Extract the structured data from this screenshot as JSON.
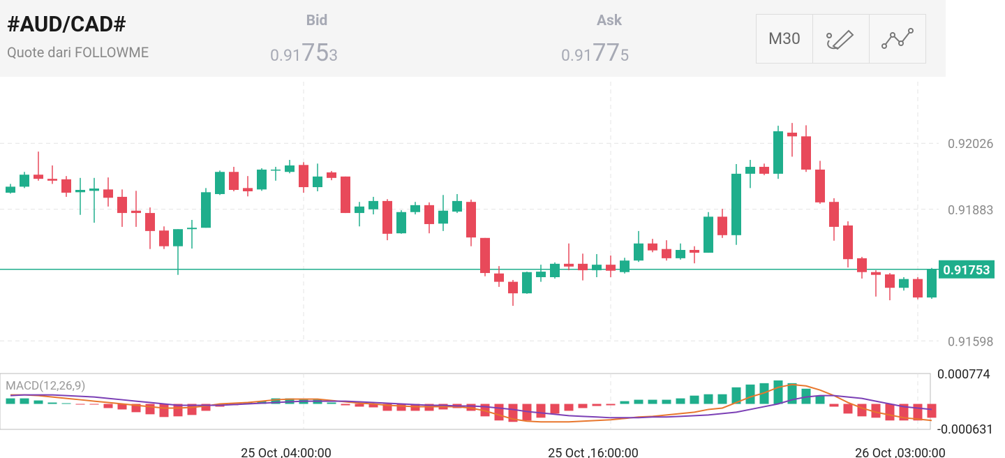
{
  "header": {
    "symbol": "#AUD/CAD#",
    "source": "Quote dari FOLLOWME",
    "bid": {
      "label": "Bid",
      "price": [
        "0.91",
        "75",
        "3"
      ]
    },
    "ask": {
      "label": "Ask",
      "price": [
        "0.91",
        "77",
        "5"
      ]
    },
    "timeframe": "M30"
  },
  "chart_data": [
    {
      "type": "candlestick",
      "up_color": "#1fae8c",
      "down_color": "#e8495a",
      "grid": true,
      "x": [
        null,
        null,
        null,
        null,
        null,
        null,
        null,
        null,
        null,
        null,
        null,
        null,
        null,
        null,
        null,
        null,
        null,
        null,
        null,
        null,
        null,
        "25 Oct ,04:00:00",
        null,
        null,
        null,
        null,
        null,
        null,
        null,
        null,
        null,
        null,
        null,
        null,
        null,
        null,
        null,
        null,
        null,
        null,
        null,
        null,
        null,
        "25 Oct ,16:00:00",
        null,
        null,
        null,
        null,
        null,
        null,
        null,
        null,
        null,
        null,
        null,
        null,
        null,
        null,
        null,
        null,
        null,
        null,
        null,
        null,
        null,
        "26 Oct ,03:00:00",
        null
      ],
      "open": [
        0.91919,
        0.91932,
        0.91958,
        0.91949,
        0.91948,
        0.9192,
        0.91923,
        0.91926,
        0.9191,
        0.9188,
        0.91875,
        0.91837,
        0.91803,
        0.9184,
        0.91843,
        0.91916,
        0.91964,
        0.91929,
        0.91926,
        0.91967,
        0.91964,
        0.91979,
        0.91931,
        0.91963,
        0.91954,
        0.91875,
        0.91883,
        0.91901,
        0.91831,
        0.91877,
        0.91892,
        0.91852,
        0.91878,
        0.91899,
        0.91821,
        0.91744,
        0.91726,
        0.91701,
        0.91736,
        0.91736,
        0.91765,
        0.91765,
        0.91751,
        0.91763,
        0.91747,
        0.91772,
        0.91809,
        0.91797,
        0.91777,
        0.91795,
        0.91789,
        0.91867,
        0.91827,
        0.9196,
        0.91975,
        0.9196,
        0.92049,
        0.92041,
        0.91969,
        0.91899,
        0.91848,
        0.91777,
        0.91747,
        0.91742,
        0.91713,
        0.91732,
        0.91692
      ],
      "high": [
        0.91938,
        0.91964,
        0.92008,
        0.91978,
        0.91955,
        0.91951,
        0.91951,
        0.91952,
        0.91926,
        0.91923,
        0.91887,
        0.91846,
        0.9184,
        0.9186,
        0.91929,
        0.91967,
        0.91975,
        0.91955,
        0.91972,
        0.91975,
        0.9199,
        0.91985,
        0.91982,
        0.91966,
        0.91954,
        0.91899,
        0.9191,
        0.91905,
        0.91881,
        0.91899,
        0.91898,
        0.91914,
        0.91916,
        0.91904,
        0.91821,
        0.9176,
        0.9173,
        0.91748,
        0.91763,
        0.91768,
        0.91809,
        0.91787,
        0.91786,
        0.91783,
        0.91778,
        0.91836,
        0.91819,
        0.91816,
        0.91809,
        0.91803,
        0.91877,
        0.91884,
        0.91981,
        0.9199,
        0.91982,
        0.92064,
        0.9207,
        0.92065,
        0.91988,
        0.91907,
        0.91857,
        0.9178,
        0.91751,
        0.91745,
        0.91736,
        0.91736,
        0.91756
      ],
      "low": [
        0.91917,
        0.91929,
        0.91945,
        0.91938,
        0.9191,
        0.91871,
        0.91854,
        0.91889,
        0.91845,
        0.91845,
        0.91797,
        0.91797,
        0.91741,
        0.91798,
        0.91843,
        0.91914,
        0.91922,
        0.91911,
        0.91923,
        0.91945,
        0.91961,
        0.91919,
        0.91922,
        0.91946,
        0.91875,
        0.91846,
        0.91872,
        0.91816,
        0.9183,
        0.91872,
        0.91831,
        0.91836,
        0.91875,
        0.91803,
        0.91738,
        0.91715,
        0.91674,
        0.917,
        0.91726,
        0.91733,
        0.91751,
        0.91729,
        0.91736,
        0.91736,
        0.91744,
        0.91769,
        0.9179,
        0.91772,
        0.91774,
        0.91766,
        0.91789,
        0.91821,
        0.91806,
        0.91929,
        0.91957,
        0.91949,
        0.91997,
        0.91964,
        0.91895,
        0.91815,
        0.91757,
        0.91733,
        0.91694,
        0.91686,
        0.91707,
        0.91688,
        0.91689
      ],
      "close": [
        0.91932,
        0.91958,
        0.91949,
        0.91945,
        0.91919,
        0.91925,
        0.91928,
        0.91908,
        0.91875,
        0.91875,
        0.91836,
        0.91803,
        0.9184,
        0.91843,
        0.9192,
        0.91964,
        0.91925,
        0.91922,
        0.91969,
        0.91969,
        0.91978,
        0.91931,
        0.91954,
        0.91951,
        0.91875,
        0.91889,
        0.91901,
        0.9183,
        0.91877,
        0.91892,
        0.91851,
        0.9188,
        0.91901,
        0.91822,
        0.91745,
        0.91726,
        0.91701,
        0.91747,
        0.91748,
        0.91765,
        0.91759,
        0.91751,
        0.91763,
        0.9175,
        0.91772,
        0.91809,
        0.91794,
        0.91777,
        0.91795,
        0.91789,
        0.91867,
        0.91827,
        0.9196,
        0.91975,
        0.9196,
        0.92052,
        0.92041,
        0.91969,
        0.91898,
        0.91845,
        0.91775,
        0.91747,
        0.91741,
        0.91713,
        0.91732,
        0.91692,
        0.91753
      ],
      "last_price": 0.91753,
      "ylim": [
        0.9155,
        0.9217
      ],
      "yticks": [
        0.92026,
        0.91883,
        0.91598
      ]
    },
    {
      "type": "macd",
      "title": "MACD(12,26,9)",
      "up_color": "#1fae8c",
      "down_color": "#e8495a",
      "grid": true,
      "ylim": [
        -0.000631,
        0.000774
      ],
      "yticks": [
        0.000774,
        -0.000631
      ],
      "histogram": [
        0.000141,
        0.000141,
        8.8e-05,
        3.5e-05,
        1.8e-05,
        -1.8e-05,
        -1.8e-05,
        -0.000106,
        -0.000141,
        -0.000211,
        -0.000264,
        -0.000334,
        -0.000317,
        -0.000282,
        -0.000176,
        -7e-05,
        -3.5e-05,
        3.5e-05,
        7e-05,
        0.000141,
        0.000141,
        0.000106,
        0.000106,
        3.5e-05,
        -3.5e-05,
        -7e-05,
        -8.8e-05,
        -0.000176,
        -0.000176,
        -0.000176,
        -0.000176,
        -0.000141,
        -0.000106,
        -0.000176,
        -0.000317,
        -0.000422,
        -0.000458,
        -0.000422,
        -0.000352,
        -0.000246,
        -0.000176,
        -0.000106,
        -5.3e-05,
        -3.5e-05,
        7e-05,
        0.000106,
        0.000106,
        0.000106,
        0.000141,
        0.000211,
        0.000246,
        0.000246,
        0.000422,
        0.000493,
        0.000528,
        0.000598,
        0.000528,
        0.000387,
        0.000211,
        -7e-05,
        -0.000246,
        -0.000317,
        -0.000352,
        -0.000422,
        -0.000422,
        -0.000422,
        -0.000352
      ],
      "lines": [
        {
          "color": "#e8772e",
          "values": [
            0.000229,
            0.000229,
            0.000211,
            0.000176,
            0.000141,
            0.000106,
            7e-05,
            3.5e-05,
            0,
            -3.5e-05,
            -7e-05,
            -0.000106,
            -0.000106,
            -8.8e-05,
            -5.3e-05,
            0,
            1.8e-05,
            3.5e-05,
            7e-05,
            0.000106,
            0.000123,
            0.000123,
            0.000123,
            8.8e-05,
            5.3e-05,
            1.8e-05,
            0,
            -3.5e-05,
            -5.3e-05,
            -7e-05,
            -7e-05,
            -7e-05,
            -7e-05,
            -0.000106,
            -0.000176,
            -0.000282,
            -0.000387,
            -0.00044,
            -0.000458,
            -0.000458,
            -0.000458,
            -0.00044,
            -0.000422,
            -0.000405,
            -0.00037,
            -0.000334,
            -0.000317,
            -0.000282,
            -0.000246,
            -0.000211,
            -0.000141,
            -0.000106,
            3.5e-05,
            0.000176,
            0.000282,
            0.000422,
            0.000493,
            0.000458,
            0.000352,
            0.000211,
            3.5e-05,
            -0.000106,
            -0.000211,
            -0.000282,
            -0.000352,
            -0.000387,
            -0.000422
          ]
        },
        {
          "color": "#7b3fb5",
          "values": [
            0.000211,
            0.000229,
            0.000229,
            0.000229,
            0.000211,
            0.000194,
            0.000176,
            0.000141,
            0.000106,
            7e-05,
            3.5e-05,
            0,
            -3.5e-05,
            -3.5e-05,
            -3.5e-05,
            -3.5e-05,
            -1.8e-05,
            0,
            1.8e-05,
            3.5e-05,
            5.3e-05,
            7e-05,
            7e-05,
            7e-05,
            7e-05,
            5.3e-05,
            3.5e-05,
            1.8e-05,
            0,
            -1.8e-05,
            -3.5e-05,
            -3.5e-05,
            -5.3e-05,
            -5.3e-05,
            -7e-05,
            -0.000106,
            -0.000141,
            -0.000194,
            -0.000229,
            -0.000264,
            -0.000299,
            -0.000317,
            -0.000334,
            -0.000352,
            -0.000352,
            -0.000352,
            -0.000334,
            -0.000334,
            -0.000317,
            -0.000299,
            -0.000282,
            -0.000246,
            -0.000211,
            -0.000141,
            -7e-05,
            0,
            0.000106,
            0.000176,
            0.000211,
            0.000211,
            0.000176,
            0.000141,
            7e-05,
            0,
            -7e-05,
            -0.000106,
            -0.000141
          ]
        }
      ]
    }
  ]
}
